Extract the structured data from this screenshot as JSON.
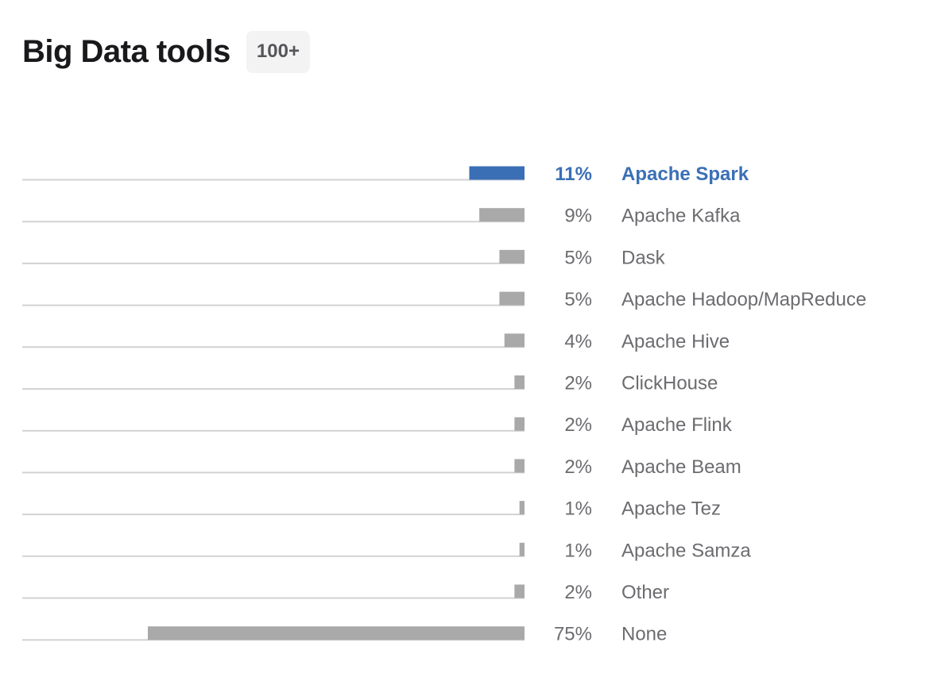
{
  "header": {
    "title": "Big Data tools",
    "badge": "100+"
  },
  "colors": {
    "highlight": "#3a6fb5",
    "bar": "#a9a9a9",
    "track": "#d2d2d2",
    "text": "#6c6c70"
  },
  "chart_data": {
    "type": "bar",
    "orientation": "horizontal",
    "highlight_index": 0,
    "xlim": [
      0,
      75
    ],
    "categories": [
      "Apache Spark",
      "Apache Kafka",
      "Dask",
      "Apache Hadoop/MapReduce",
      "Apache Hive",
      "ClickHouse",
      "Apache Flink",
      "Apache Beam",
      "Apache Tez",
      "Apache Samza",
      "Other",
      "None"
    ],
    "values": [
      11,
      9,
      5,
      5,
      4,
      2,
      2,
      2,
      1,
      1,
      2,
      75
    ],
    "value_labels": [
      "11%",
      "9%",
      "5%",
      "5%",
      "4%",
      "2%",
      "2%",
      "2%",
      "1%",
      "1%",
      "2%",
      "75%"
    ]
  }
}
